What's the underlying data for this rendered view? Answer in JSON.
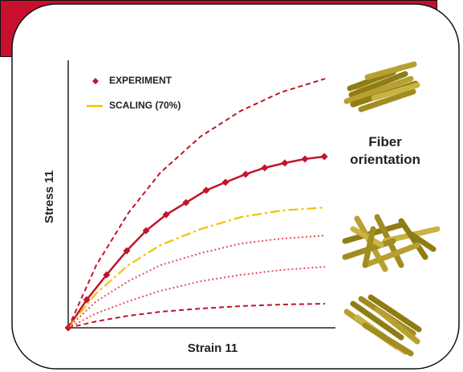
{
  "chart_data": {
    "type": "line",
    "xlabel": "Strain 11",
    "ylabel": "Stress 11",
    "annotation": "Fiber orientation",
    "xlim": [
      0,
      100
    ],
    "ylim": [
      0,
      100
    ],
    "legend": "top-left",
    "series": [
      {
        "name": "EXPERIMENT",
        "color": "#c0152a",
        "style": "solid",
        "marker": "diamond",
        "x": [
          0,
          7,
          14.5,
          22.1,
          29.4,
          37,
          44.5,
          52.1,
          59.4,
          67,
          74.2,
          81.8,
          89.4,
          96.7
        ],
        "values": [
          0,
          10.5,
          19.8,
          28.8,
          36.3,
          42.3,
          46.8,
          51.4,
          54.4,
          57.4,
          59.8,
          61.6,
          63.1,
          64.0
        ]
      },
      {
        "name": "SCALING (70%)",
        "color": "#f2c300",
        "style": "dashdot",
        "x": [
          0,
          10.6,
          22.7,
          34.8,
          50,
          65.2,
          80.3,
          97
        ],
        "values": [
          0,
          12.9,
          23.4,
          30.9,
          36.9,
          41.4,
          43.8,
          45
        ]
      },
      {
        "color": "#c0152a",
        "style": "dashed",
        "x": [
          0,
          10.6,
          22.7,
          34.8,
          50,
          65.2,
          80.3,
          97
        ],
        "values": [
          0,
          23.4,
          42.9,
          58,
          71.5,
          81.1,
          88,
          93.1
        ]
      },
      {
        "color": "#e0505a",
        "style": "dotted",
        "x": [
          0,
          10.6,
          22.7,
          34.8,
          50,
          65.2,
          80.3,
          97
        ],
        "values": [
          0,
          9.9,
          17.4,
          23.4,
          27.9,
          31.5,
          33.3,
          34.5
        ]
      },
      {
        "color": "#e0505a",
        "style": "dotted",
        "x": [
          0,
          10.6,
          22.7,
          34.8,
          50,
          65.2,
          80.3,
          97
        ],
        "values": [
          0,
          5.4,
          9.9,
          13.8,
          17.4,
          19.8,
          21.6,
          22.8
        ]
      },
      {
        "color": "#c0152a",
        "style": "dashed",
        "x": [
          0,
          10.6,
          22.7,
          34.8,
          50,
          65.2,
          80.3,
          97
        ],
        "values": [
          0,
          2.4,
          4.5,
          6,
          7.2,
          8.1,
          8.7,
          9
        ]
      }
    ]
  }
}
